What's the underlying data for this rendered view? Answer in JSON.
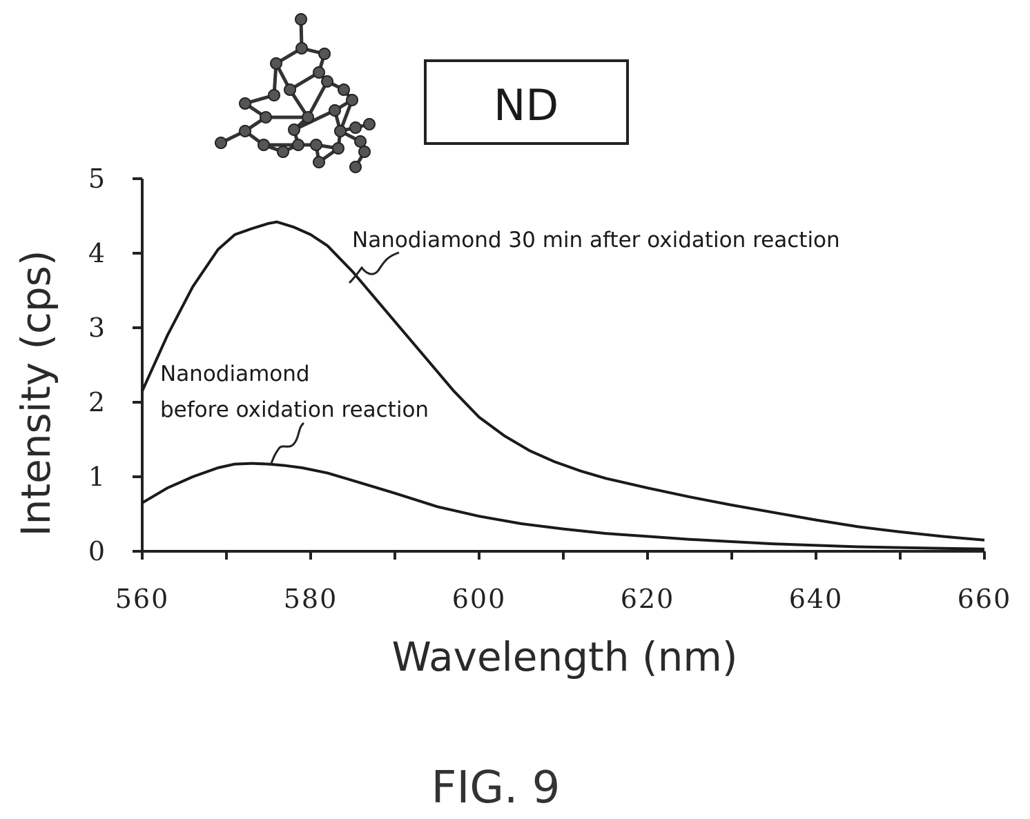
{
  "chart_data": {
    "type": "line",
    "xlabel": "Wavelength (nm)",
    "ylabel": "Intensity (cps)",
    "xlim": [
      560,
      660
    ],
    "ylim": [
      0,
      5
    ],
    "x_ticks": [
      "560",
      "580",
      "600",
      "620",
      "640",
      "660"
    ],
    "y_ticks": [
      "0",
      "1",
      "2",
      "3",
      "4",
      "5"
    ],
    "x_tick_values": [
      560,
      570,
      580,
      590,
      600,
      610,
      620,
      630,
      640,
      650,
      660
    ],
    "y_tick_values": [
      0,
      1,
      2,
      3,
      4,
      5
    ],
    "grid": false,
    "series": [
      {
        "name": "Nanodiamond 30 min after oxidation reaction",
        "x": [
          560,
          563,
          566,
          569,
          571,
          573,
          575,
          576,
          578,
          580,
          582,
          585,
          588,
          591,
          594,
          597,
          600,
          603,
          606,
          609,
          612,
          615,
          620,
          625,
          630,
          635,
          640,
          645,
          650,
          655,
          660
        ],
        "y": [
          2.15,
          2.9,
          3.55,
          4.05,
          4.25,
          4.33,
          4.4,
          4.42,
          4.35,
          4.25,
          4.1,
          3.75,
          3.35,
          2.95,
          2.55,
          2.15,
          1.8,
          1.55,
          1.35,
          1.2,
          1.08,
          0.98,
          0.85,
          0.73,
          0.62,
          0.52,
          0.42,
          0.33,
          0.26,
          0.2,
          0.15
        ]
      },
      {
        "name": "Nanodiamond before oxidation reaction",
        "x": [
          560,
          563,
          566,
          569,
          571,
          573,
          575,
          577,
          579,
          582,
          585,
          590,
          595,
          600,
          605,
          610,
          615,
          620,
          625,
          630,
          635,
          640,
          645,
          650,
          655,
          660
        ],
        "y": [
          0.65,
          0.85,
          1.0,
          1.12,
          1.17,
          1.18,
          1.17,
          1.15,
          1.12,
          1.05,
          0.95,
          0.78,
          0.6,
          0.47,
          0.37,
          0.3,
          0.24,
          0.2,
          0.16,
          0.13,
          0.1,
          0.08,
          0.06,
          0.05,
          0.04,
          0.03
        ]
      }
    ],
    "annotations": {
      "after": "Nanodiamond 30 min after oxidation reaction",
      "before_line1": "Nanodiamond",
      "before_line2": "before oxidation reaction"
    }
  },
  "inset_label": "ND",
  "figure_caption": "FIG. 9"
}
